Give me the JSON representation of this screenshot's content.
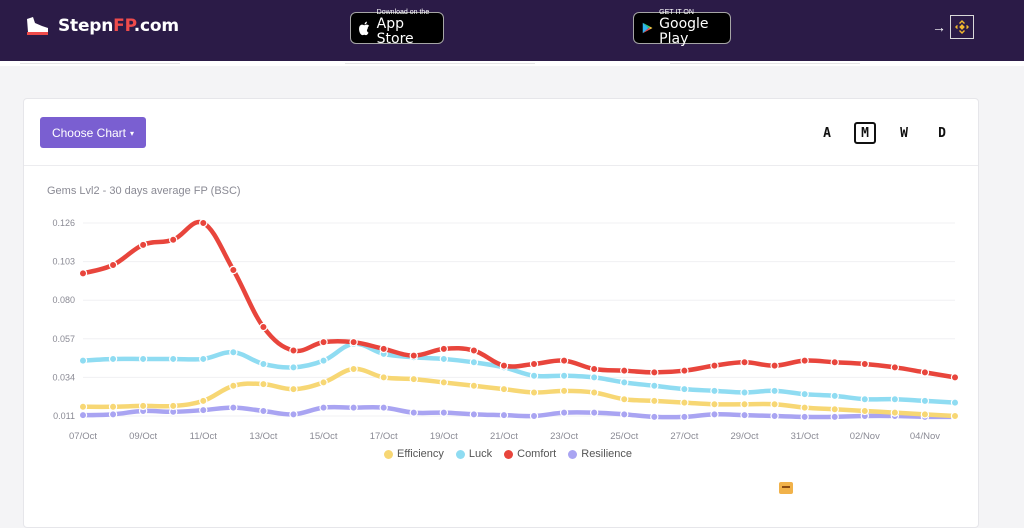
{
  "header": {
    "logo_main": "Stepn",
    "logo_accent": "FP",
    "logo_suffix": ".com",
    "appstore_small": "Download on the",
    "appstore_big": "App Store",
    "googleplay_small": "GET IT ON",
    "googleplay_big": "Google Play",
    "login_arrow": "→"
  },
  "controls": {
    "choose_chart": "Choose Chart",
    "ranges": [
      "A",
      "M",
      "W",
      "D"
    ],
    "active_range": "M"
  },
  "chart_title": "Gems Lvl2 - 30 days average FP (BSC)",
  "colors": {
    "topbar": "#2b1b47",
    "efficiency": "#f7d774",
    "luck": "#8fdcf2",
    "comfort": "#e8453c",
    "resilience": "#a9a4f2",
    "button": "#7a5fd1"
  },
  "chart_data": {
    "type": "line",
    "title": "Gems Lvl2 - 30 days average FP (BSC)",
    "x": [
      "07/Oct",
      "08/Oct",
      "09/Oct",
      "10/Oct",
      "11/Oct",
      "12/Oct",
      "13/Oct",
      "14/Oct",
      "15/Oct",
      "16/Oct",
      "17/Oct",
      "18/Oct",
      "19/Oct",
      "20/Oct",
      "21/Oct",
      "22/Oct",
      "23/Oct",
      "24/Oct",
      "25/Oct",
      "26/Oct",
      "27/Oct",
      "28/Oct",
      "29/Oct",
      "30/Oct",
      "31/Oct",
      "01/Nov",
      "02/Nov",
      "03/Nov",
      "04/Nov",
      "05/Nov"
    ],
    "xtick_labels": [
      "07/Oct",
      "09/Oct",
      "11/Oct",
      "13/Oct",
      "15/Oct",
      "17/Oct",
      "19/Oct",
      "21/Oct",
      "23/Oct",
      "25/Oct",
      "27/Oct",
      "29/Oct",
      "31/Oct",
      "02/Nov",
      "04/Nov"
    ],
    "yticks": [
      "0.011",
      "0.034",
      "0.057",
      "0.080",
      "0.103",
      "0.126"
    ],
    "ylim": [
      0.011,
      0.126
    ],
    "grid": true,
    "legend": "bottom",
    "series": [
      {
        "name": "Efficiency",
        "values": [
          0.0165,
          0.0165,
          0.017,
          0.017,
          0.02,
          0.029,
          0.03,
          0.027,
          0.031,
          0.039,
          0.034,
          0.033,
          0.031,
          0.029,
          0.027,
          0.025,
          0.026,
          0.025,
          0.021,
          0.02,
          0.019,
          0.018,
          0.018,
          0.018,
          0.016,
          0.015,
          0.014,
          0.013,
          0.012,
          0.011
        ]
      },
      {
        "name": "Luck",
        "values": [
          0.044,
          0.045,
          0.045,
          0.045,
          0.045,
          0.049,
          0.042,
          0.04,
          0.044,
          0.054,
          0.048,
          0.046,
          0.045,
          0.043,
          0.04,
          0.035,
          0.035,
          0.034,
          0.031,
          0.029,
          0.027,
          0.026,
          0.025,
          0.026,
          0.024,
          0.023,
          0.021,
          0.021,
          0.02,
          0.019
        ]
      },
      {
        "name": "Comfort",
        "values": [
          0.096,
          0.101,
          0.113,
          0.116,
          0.126,
          0.098,
          0.064,
          0.05,
          0.055,
          0.055,
          0.051,
          0.047,
          0.051,
          0.05,
          0.041,
          0.042,
          0.044,
          0.039,
          0.038,
          0.037,
          0.038,
          0.041,
          0.043,
          0.041,
          0.044,
          0.043,
          0.042,
          0.04,
          0.037,
          0.034
        ]
      },
      {
        "name": "Resilience",
        "values": [
          0.0115,
          0.012,
          0.014,
          0.0135,
          0.0145,
          0.016,
          0.014,
          0.012,
          0.016,
          0.016,
          0.016,
          0.013,
          0.013,
          0.012,
          0.0115,
          0.011,
          0.013,
          0.013,
          0.012,
          0.0105,
          0.0105,
          0.012,
          0.0115,
          0.011,
          0.0105,
          0.0105,
          0.011,
          0.011,
          0.0105,
          0.0105
        ]
      }
    ]
  }
}
